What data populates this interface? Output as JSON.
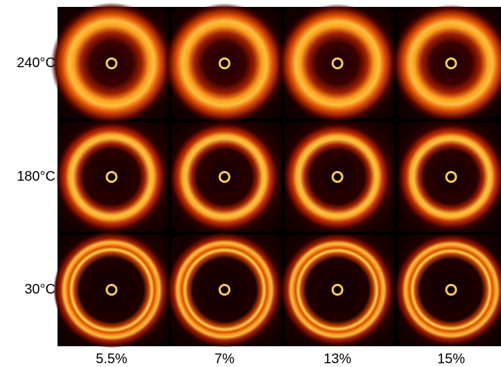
{
  "row_labels": [
    "240°C",
    "180°C",
    "30°C"
  ],
  "column_labels": [
    "5.5%",
    "7%",
    "13%",
    "15%"
  ]
}
